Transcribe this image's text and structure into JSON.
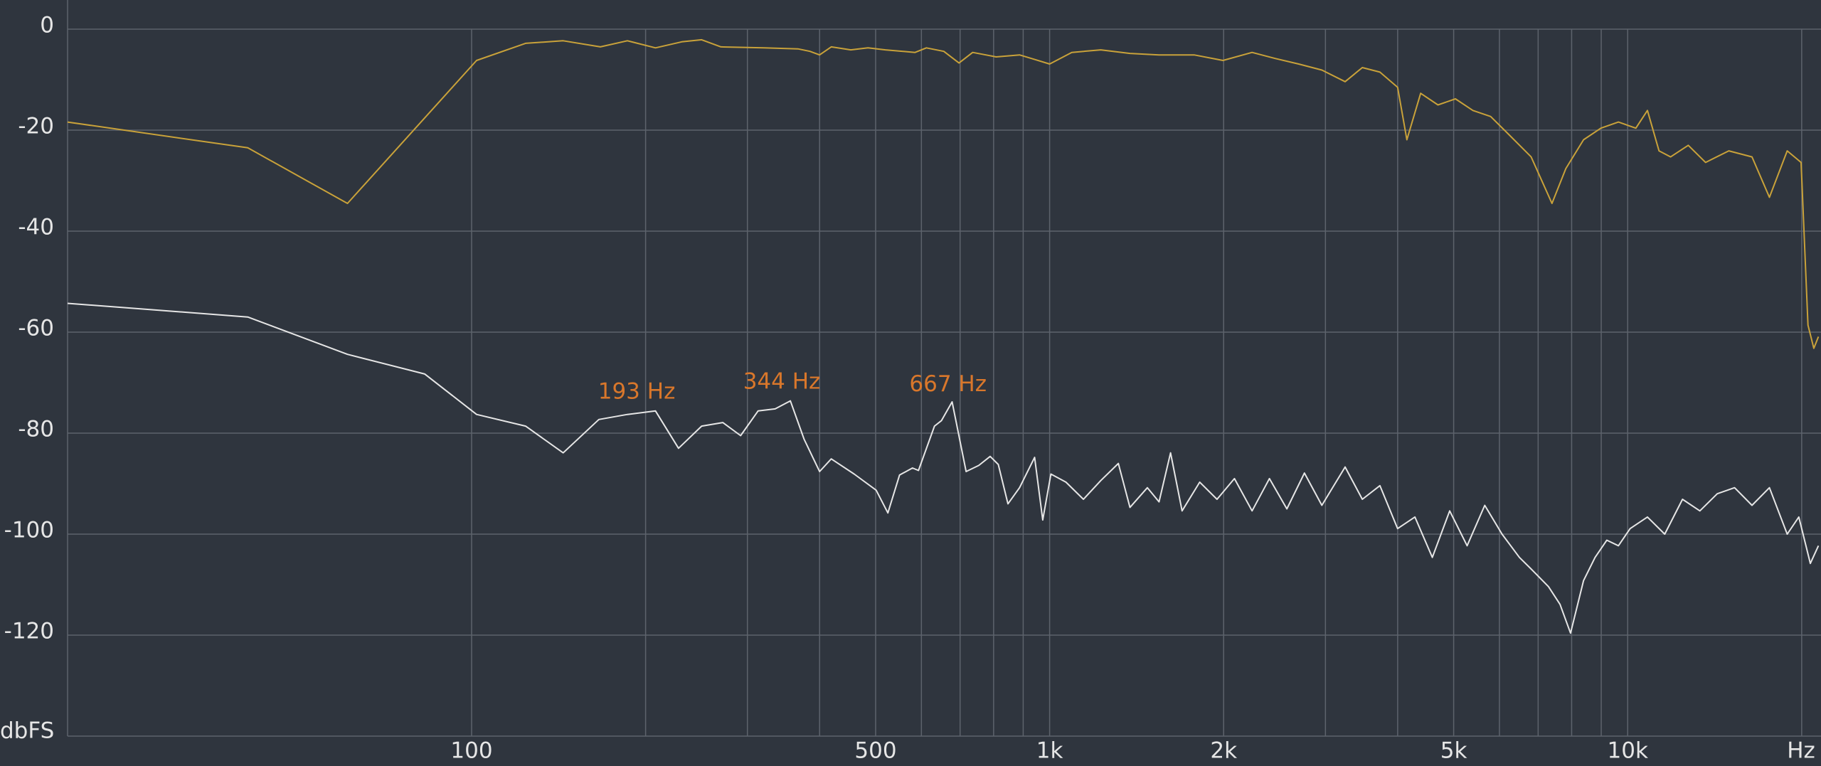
{
  "chart_data": {
    "type": "line",
    "log_x": true,
    "grid": true,
    "xlim": [
      20,
      21600
    ],
    "ylim": [
      -140,
      0
    ],
    "xticks": [
      100,
      500,
      {
        "value": 1000,
        "label": "1k"
      },
      {
        "value": 2000,
        "label": "2k"
      },
      {
        "value": 5000,
        "label": "5k"
      },
      {
        "value": 10000,
        "label": "10k"
      },
      {
        "value": 20000,
        "label": "Hz"
      }
    ],
    "xgrid": [
      200,
      300,
      400,
      600,
      700,
      800,
      900,
      3000,
      4000,
      6000,
      7000,
      8000,
      9000
    ],
    "yticks": [
      0,
      -20,
      -40,
      -60,
      -80,
      -100,
      -120,
      {
        "value": -140,
        "label": "dbFS"
      }
    ],
    "series": [
      {
        "color": "#c9a23a",
        "x": [
          20,
          41,
          61,
          102,
          124,
          144,
          167,
          186,
          208,
          231,
          250,
          270,
          320,
          367,
          385,
          400,
          419,
          453,
          485,
          520,
          585,
          612,
          656,
          697,
          736,
          808,
          887,
          942,
          1000,
          1092,
          1226,
          1377,
          1546,
          1778,
          1995,
          2240,
          2455,
          2697,
          2958,
          3245,
          3475,
          3727,
          3999,
          4149,
          4384,
          4697,
          5036,
          5398,
          5794,
          6209,
          6808,
          7396,
          7818,
          8388,
          8989,
          9638,
          10330,
          10818,
          11330,
          11867,
          12730,
          13640,
          14960,
          16410,
          17590,
          18880,
          19950,
          20510,
          20990,
          21380
        ],
        "values": [
          -18.4,
          -23.5,
          -34.5,
          -6.2,
          -2.8,
          -2.3,
          -3.5,
          -2.3,
          -3.7,
          -2.5,
          -2.1,
          -3.5,
          -3.7,
          -3.9,
          -4.4,
          -5.1,
          -3.5,
          -4.1,
          -3.7,
          -4.1,
          -4.6,
          -3.7,
          -4.4,
          -6.7,
          -4.6,
          -5.5,
          -5.1,
          -6.0,
          -6.9,
          -4.6,
          -4.1,
          -4.8,
          -5.1,
          -5.1,
          -6.2,
          -4.6,
          -5.8,
          -6.9,
          -8.1,
          -10.4,
          -7.6,
          -8.5,
          -11.5,
          -21.9,
          -12.7,
          -15.0,
          -13.8,
          -16.1,
          -17.3,
          -20.7,
          -25.3,
          -34.5,
          -27.6,
          -21.9,
          -19.6,
          -18.4,
          -19.6,
          -16.1,
          -24.1,
          -25.3,
          -23.0,
          -26.4,
          -24.1,
          -25.3,
          -33.3,
          -24.1,
          -26.4,
          -58.6,
          -63.2,
          -60.9
        ]
      },
      {
        "color": "#e6e6e6",
        "x": [
          20,
          41,
          61,
          83,
          102,
          124,
          144,
          166,
          186,
          208,
          228,
          250,
          272,
          292,
          313,
          335,
          356,
          376,
          400,
          419,
          459,
          501,
          525,
          550,
          579,
          593,
          632,
          650,
          678,
          717,
          754,
          789,
          815,
          847,
          887,
          942,
          973,
          1005,
          1067,
          1144,
          1226,
          1315,
          1377,
          1476,
          1546,
          1619,
          1695,
          1818,
          1948,
          2088,
          2240,
          2400,
          2573,
          2759,
          2958,
          3245,
          3475,
          3727,
          3999,
          4285,
          4592,
          4922,
          5275,
          5659,
          6063,
          6497,
          6808,
          7295,
          7638,
          7965,
          8388,
          8782,
          9204,
          9638,
          10100,
          10818,
          11590,
          12440,
          13330,
          14290,
          15310,
          16410,
          17590,
          18880,
          19770,
          20700,
          21380
        ],
        "values": [
          -54.3,
          -57.0,
          -64.4,
          -68.3,
          -76.3,
          -78.6,
          -83.9,
          -77.3,
          -76.3,
          -75.6,
          -83.0,
          -78.6,
          -77.9,
          -80.5,
          -75.6,
          -75.2,
          -73.6,
          -81.2,
          -87.6,
          -85.1,
          -88.1,
          -91.3,
          -95.8,
          -88.3,
          -86.9,
          -87.4,
          -78.6,
          -77.5,
          -73.8,
          -87.6,
          -86.4,
          -84.6,
          -86.2,
          -94.0,
          -90.8,
          -84.8,
          -97.2,
          -88.1,
          -89.7,
          -93.1,
          -89.4,
          -86.0,
          -94.7,
          -90.8,
          -93.6,
          -83.9,
          -95.4,
          -89.7,
          -93.1,
          -89.0,
          -95.4,
          -89.0,
          -95.0,
          -87.9,
          -94.3,
          -86.7,
          -93.1,
          -90.4,
          -98.9,
          -96.6,
          -104.6,
          -95.4,
          -102.3,
          -94.3,
          -100.0,
          -104.6,
          -106.9,
          -110.4,
          -113.9,
          -119.6,
          -109.2,
          -104.6,
          -101.2,
          -102.3,
          -98.9,
          -96.6,
          -100.0,
          -93.1,
          -95.4,
          -92.0,
          -90.8,
          -94.3,
          -90.8,
          -100.0,
          -96.6,
          -105.8,
          -102.3
        ]
      }
    ],
    "annotations": [
      {
        "label": "193 Hz",
        "color": "#d9772b",
        "x": 193,
        "y": -72
      },
      {
        "label": "344 Hz",
        "color": "#d9772b",
        "x": 344,
        "y": -70
      },
      {
        "label": "667 Hz",
        "color": "#d9772b",
        "x": 667,
        "y": -70.5
      }
    ]
  }
}
